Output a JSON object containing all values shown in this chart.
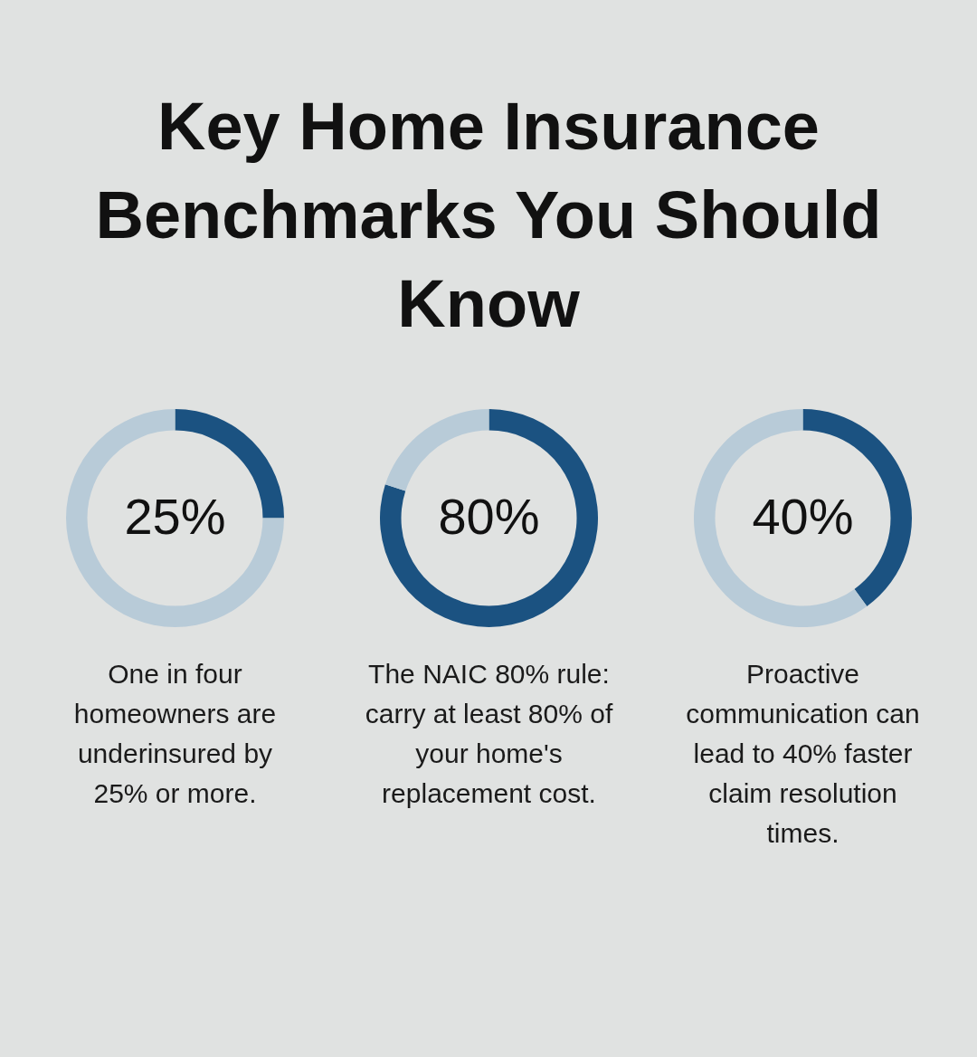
{
  "chart_data": [
    {
      "type": "other",
      "title": "Key Home Insurance Benchmarks You Should Know"
    },
    {
      "type": "donut",
      "categories": [
        null,
        null
      ],
      "values": [
        25,
        75
      ],
      "colors": [
        "#1b5281",
        "#b8cbd8"
      ],
      "value_labels": [
        "25%",
        null
      ],
      "annotations": [
        "One in four homeowners are underinsured by 25% or more."
      ]
    },
    {
      "type": "donut",
      "categories": [
        null,
        null
      ],
      "values": [
        80,
        20
      ],
      "colors": [
        "#1b5281",
        "#b8cbd8"
      ],
      "value_labels": [
        "80%",
        null
      ],
      "annotations": [
        "The NAIC 80% rule: carry at least 80% of your home's replacement cost."
      ]
    },
    {
      "type": "donut",
      "categories": [
        null,
        null
      ],
      "values": [
        40,
        60
      ],
      "colors": [
        "#1b5281",
        "#b8cbd8"
      ],
      "value_labels": [
        "40%",
        null
      ],
      "annotations": [
        "Proactive communication can lead to 40% faster claim resolution times."
      ]
    }
  ]
}
